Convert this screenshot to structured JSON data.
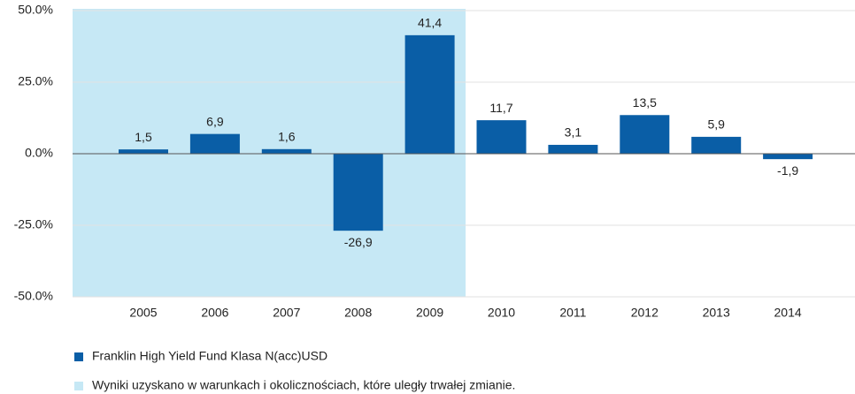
{
  "chart_data": {
    "type": "bar",
    "categories": [
      "2005",
      "2006",
      "2007",
      "2008",
      "2009",
      "2010",
      "2011",
      "2012",
      "2013",
      "2014"
    ],
    "series": [
      {
        "name": "Franklin High Yield Fund Klasa N(acc)USD",
        "color": "#0a5ea6",
        "values": [
          1.5,
          6.9,
          1.6,
          -26.9,
          41.4,
          11.7,
          3.1,
          13.5,
          5.9,
          -1.9
        ],
        "value_labels": [
          "1,5",
          "6,9",
          "1,6",
          "-26,9",
          "41,4",
          "11,7",
          "3,1",
          "13,5",
          "5,9",
          "-1,9"
        ]
      }
    ],
    "ylim": [
      -50,
      50
    ],
    "yticks": [
      {
        "value": -50,
        "label": "-50.0%"
      },
      {
        "value": -25,
        "label": "-25.0%"
      },
      {
        "value": 0,
        "label": "0.0%"
      },
      {
        "value": 25,
        "label": "25.0%"
      },
      {
        "value": 50,
        "label": "50.0%"
      }
    ],
    "grid": true,
    "shaded_region": {
      "label": "Wyniki uzyskano w warunkach i okolicznościach, które uległy trwałej zmianie.",
      "color": "#c6e8f5",
      "start": "2005",
      "end": "2009"
    }
  }
}
